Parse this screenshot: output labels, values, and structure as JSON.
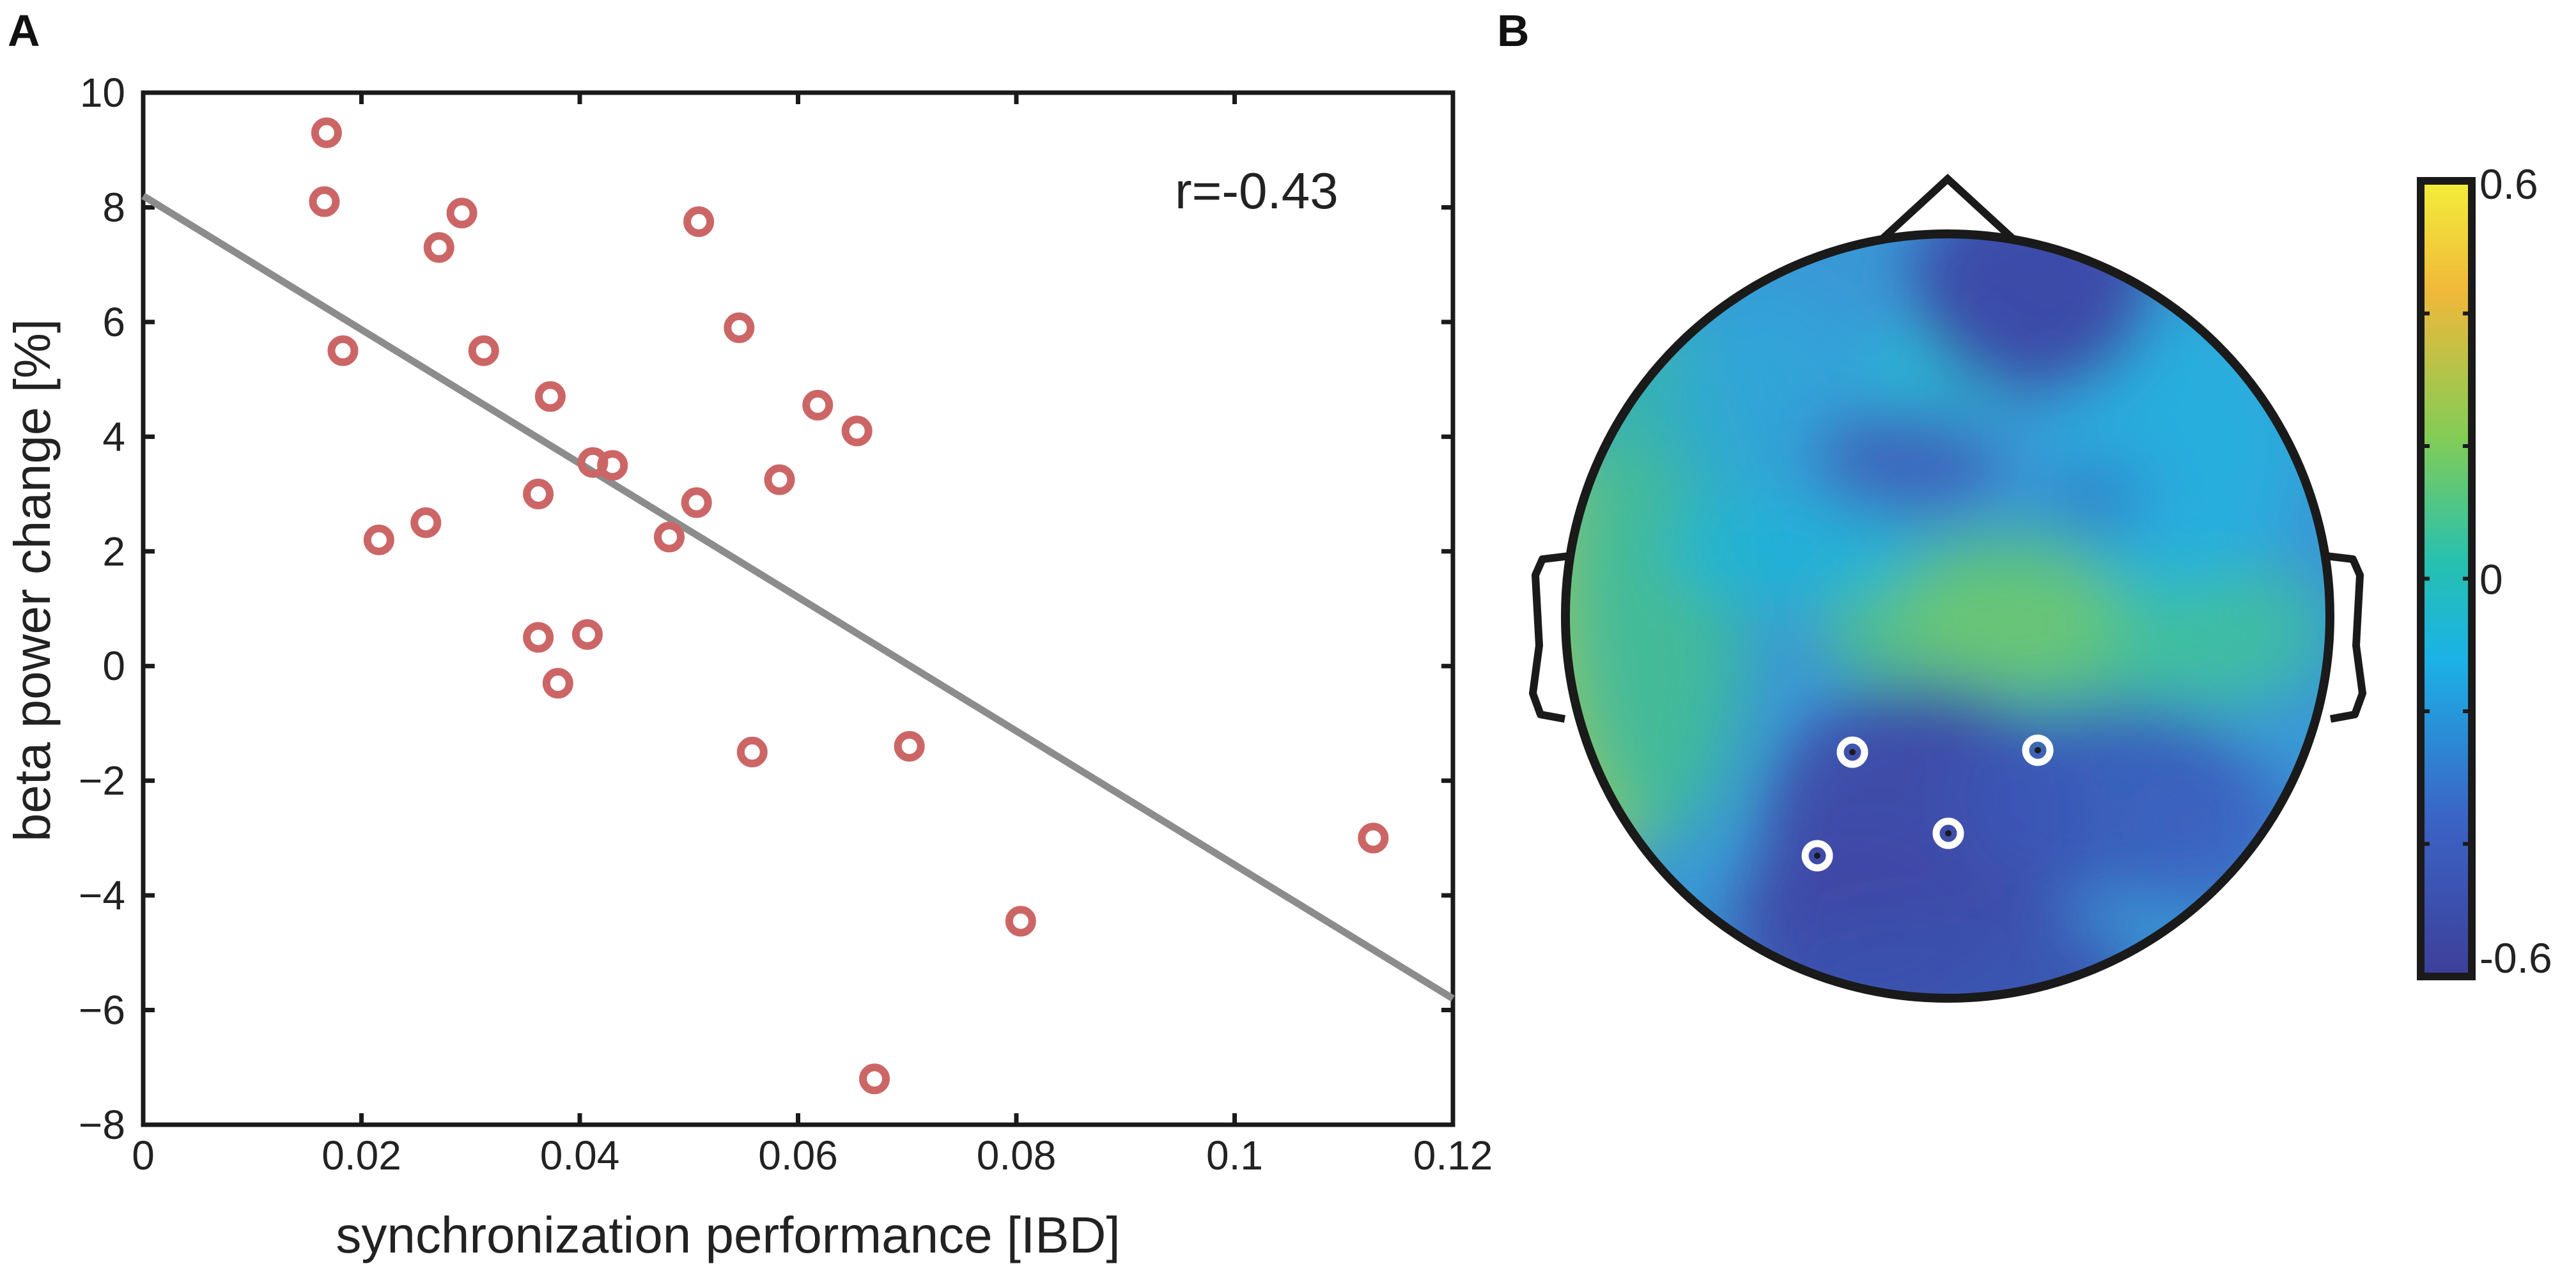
{
  "chart_data": [
    {
      "panel": "A",
      "type": "scatter",
      "title": "",
      "xlabel": "synchronization performance [IBD]",
      "ylabel": "beta power change [%]",
      "xlim": [
        0,
        0.12
      ],
      "ylim": [
        -8,
        10
      ],
      "xticks": [
        0,
        0.02,
        0.04,
        0.06,
        0.08,
        0.1,
        0.12
      ],
      "xtick_labels": [
        "0",
        "0.02",
        "0.04",
        "0.06",
        "0.08",
        "0.1",
        "0.12"
      ],
      "yticks": [
        10,
        8,
        6,
        4,
        2,
        0,
        -2,
        -4,
        -6,
        -8
      ],
      "ytick_labels": [
        "10",
        "8",
        "6",
        "4",
        "2",
        "0",
        "−2",
        "−4",
        "−6",
        "−8"
      ],
      "annotation": "r=-0.43",
      "points": {
        "x": [
          0.0168,
          0.0166,
          0.0183,
          0.0216,
          0.0259,
          0.0271,
          0.0292,
          0.0312,
          0.0362,
          0.0362,
          0.0373,
          0.038,
          0.0407,
          0.0412,
          0.043,
          0.0482,
          0.0507,
          0.0509,
          0.0546,
          0.0558,
          0.0583,
          0.0618,
          0.0654,
          0.067,
          0.0702,
          0.0804,
          0.1127
        ],
        "y": [
          9.3,
          8.1,
          5.5,
          2.2,
          2.5,
          7.3,
          7.9,
          5.5,
          3.0,
          0.5,
          4.7,
          -0.3,
          0.55,
          3.55,
          3.5,
          2.25,
          2.85,
          7.75,
          5.9,
          -1.5,
          3.25,
          4.55,
          4.1,
          -7.2,
          -1.4,
          -4.45,
          -3.0
        ],
        "color": "#cc6666"
      },
      "fit_line": {
        "x": [
          0,
          0.12
        ],
        "y": [
          8.2,
          -5.8
        ],
        "color": "#8c8c8c"
      }
    },
    {
      "panel": "B",
      "type": "heatmap",
      "description": "scalp topography",
      "colorbar": {
        "tick_labels": [
          "0.6",
          "0",
          "-0.6"
        ],
        "tick_values": [
          0.6,
          0,
          -0.6
        ],
        "range": [
          -0.6,
          0.6
        ],
        "colors": [
          "#3d3f99",
          "#3b64c6",
          "#1bb2e6",
          "#26c0b0",
          "#84cc55",
          "#f0b83a",
          "#f2ee3a"
        ]
      },
      "highlighted_electrodes": 4
    }
  ],
  "panel_labels": {
    "a": "A",
    "b": "B"
  }
}
